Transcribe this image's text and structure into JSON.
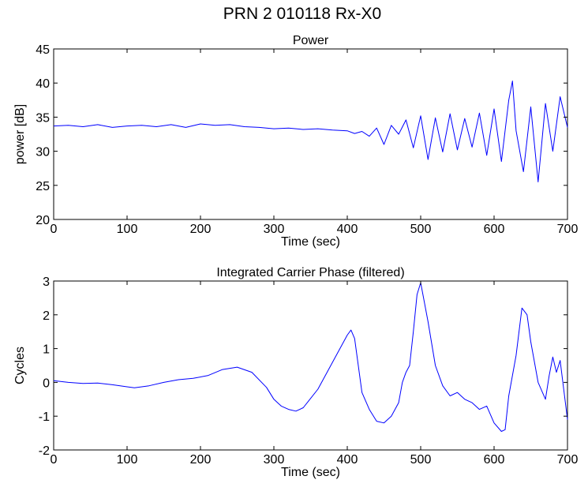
{
  "figure_title": "PRN 2  010118 Rx-X0",
  "chart_data": [
    {
      "type": "line",
      "title": "Power",
      "xlabel": "Time (sec)",
      "ylabel": "power [dB]",
      "xlim": [
        0,
        700
      ],
      "ylim": [
        20,
        45
      ],
      "xticks": [
        0,
        100,
        200,
        300,
        400,
        500,
        600,
        700
      ],
      "yticks": [
        20,
        25,
        30,
        35,
        40,
        45
      ],
      "grid": false,
      "line_color": "#0000ff",
      "series": [
        {
          "x": [
            0,
            20,
            40,
            60,
            80,
            100,
            120,
            140,
            160,
            180,
            200,
            220,
            240,
            260,
            280,
            300,
            320,
            340,
            360,
            380,
            400,
            410,
            420,
            430,
            440,
            450,
            460,
            470,
            480,
            490,
            500,
            510,
            520,
            530,
            540,
            550,
            560,
            570,
            580,
            590,
            600,
            610,
            620,
            625,
            630,
            640,
            650,
            660,
            670,
            680,
            690,
            700
          ],
          "y": [
            33.7,
            33.8,
            33.6,
            33.9,
            33.5,
            33.7,
            33.8,
            33.6,
            33.9,
            33.5,
            34.0,
            33.8,
            33.9,
            33.6,
            33.5,
            33.3,
            33.4,
            33.2,
            33.3,
            33.1,
            33.0,
            32.6,
            32.9,
            32.2,
            33.4,
            31.0,
            33.8,
            32.5,
            34.6,
            30.5,
            35.2,
            28.8,
            34.9,
            29.9,
            35.5,
            30.2,
            34.8,
            30.6,
            35.6,
            29.4,
            36.2,
            28.5,
            37.5,
            40.3,
            33.0,
            27.0,
            36.5,
            25.5,
            37.0,
            30.0,
            38.0,
            33.5
          ]
        }
      ]
    },
    {
      "type": "line",
      "title": "Integrated Carrier Phase (filtered)",
      "xlabel": "Time (sec)",
      "ylabel": "Cycles",
      "xlim": [
        0,
        700
      ],
      "ylim": [
        -2,
        3
      ],
      "xticks": [
        0,
        100,
        200,
        300,
        400,
        500,
        600,
        700
      ],
      "yticks": [
        -2,
        -1,
        0,
        1,
        2,
        3
      ],
      "grid": false,
      "line_color": "#0000ff",
      "series": [
        {
          "x": [
            0,
            20,
            40,
            60,
            80,
            100,
            110,
            130,
            150,
            170,
            190,
            210,
            230,
            250,
            270,
            290,
            300,
            310,
            320,
            330,
            340,
            360,
            380,
            400,
            405,
            410,
            420,
            430,
            440,
            450,
            460,
            470,
            475,
            480,
            485,
            490,
            495,
            500,
            510,
            520,
            530,
            540,
            550,
            560,
            570,
            580,
            590,
            600,
            610,
            615,
            620,
            630,
            638,
            645,
            650,
            660,
            670,
            675,
            680,
            685,
            690,
            700
          ],
          "y": [
            0.05,
            0.0,
            -0.03,
            -0.02,
            -0.07,
            -0.13,
            -0.16,
            -0.1,
            0.0,
            0.08,
            0.12,
            0.2,
            0.38,
            0.45,
            0.3,
            -0.15,
            -0.5,
            -0.7,
            -0.8,
            -0.85,
            -0.75,
            -0.2,
            0.6,
            1.4,
            1.55,
            1.3,
            -0.3,
            -0.8,
            -1.15,
            -1.2,
            -1.0,
            -0.6,
            0.0,
            0.3,
            0.5,
            1.5,
            2.6,
            2.95,
            1.8,
            0.5,
            -0.1,
            -0.4,
            -0.3,
            -0.5,
            -0.6,
            -0.8,
            -0.7,
            -1.2,
            -1.45,
            -1.4,
            -0.4,
            0.8,
            2.2,
            2.0,
            1.2,
            0.0,
            -0.5,
            0.2,
            0.75,
            0.3,
            0.65,
            -1.1
          ]
        }
      ]
    }
  ]
}
